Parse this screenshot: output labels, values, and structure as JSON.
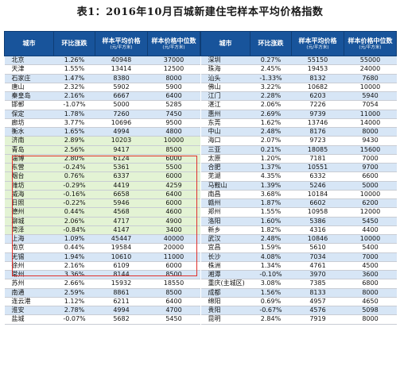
{
  "title": "表1：2016年10月百城新建住宅样本平均价格指数",
  "headers": {
    "city": "城市",
    "mom": "环比涨跌",
    "avg": "样本平均价格",
    "avg_unit": "(元/平方米)",
    "median": "样本价格中位数",
    "median_unit": "(元/平方米)"
  },
  "colors": {
    "header_bg": "#18549b",
    "row_blue": "#d7e6f6",
    "row_white": "#ffffff",
    "row_green": "#e3f3d4",
    "highlight_border": "#e0302c"
  },
  "left_table": [
    {
      "city": "北京",
      "mom": "1.26%",
      "avg": "40948",
      "median": "37000",
      "tone": "blue"
    },
    {
      "city": "天津",
      "mom": "1.55%",
      "avg": "13414",
      "median": "12500",
      "tone": "white"
    },
    {
      "city": "石家庄",
      "mom": "1.47%",
      "avg": "8380",
      "median": "8000",
      "tone": "blue"
    },
    {
      "city": "唐山",
      "mom": "2.32%",
      "avg": "5902",
      "median": "5900",
      "tone": "white"
    },
    {
      "city": "秦皇岛",
      "mom": "2.16%",
      "avg": "6667",
      "median": "6400",
      "tone": "blue"
    },
    {
      "city": "邯郸",
      "mom": "-1.07%",
      "avg": "5000",
      "median": "5285",
      "tone": "white"
    },
    {
      "city": "保定",
      "mom": "1.78%",
      "avg": "7260",
      "median": "7450",
      "tone": "blue"
    },
    {
      "city": "廊坊",
      "mom": "3.77%",
      "avg": "10696",
      "median": "9500",
      "tone": "white"
    },
    {
      "city": "衡水",
      "mom": "1.65%",
      "avg": "4994",
      "median": "4800",
      "tone": "blue"
    },
    {
      "city": "济南",
      "mom": "2.89%",
      "avg": "10203",
      "median": "10000",
      "tone": "green"
    },
    {
      "city": "青岛",
      "mom": "2.56%",
      "avg": "9417",
      "median": "8500",
      "tone": "green"
    },
    {
      "city": "淄博",
      "mom": "2.80%",
      "avg": "6124",
      "median": "6000",
      "tone": "green"
    },
    {
      "city": "东营",
      "mom": "-0.24%",
      "avg": "5361",
      "median": "5500",
      "tone": "green"
    },
    {
      "city": "烟台",
      "mom": "0.76%",
      "avg": "6337",
      "median": "6000",
      "tone": "green"
    },
    {
      "city": "潍坊",
      "mom": "-0.29%",
      "avg": "4419",
      "median": "4259",
      "tone": "green"
    },
    {
      "city": "威海",
      "mom": "-0.16%",
      "avg": "6658",
      "median": "6400",
      "tone": "green"
    },
    {
      "city": "日照",
      "mom": "-0.22%",
      "avg": "5946",
      "median": "6000",
      "tone": "green"
    },
    {
      "city": "德州",
      "mom": "0.44%",
      "avg": "4568",
      "median": "4600",
      "tone": "green"
    },
    {
      "city": "聊城",
      "mom": "2.06%",
      "avg": "4717",
      "median": "4900",
      "tone": "green"
    },
    {
      "city": "菏泽",
      "mom": "-0.84%",
      "avg": "4147",
      "median": "3400",
      "tone": "green"
    },
    {
      "city": "上海",
      "mom": "1.09%",
      "avg": "45447",
      "median": "40000",
      "tone": "blue"
    },
    {
      "city": "南京",
      "mom": "0.44%",
      "avg": "19584",
      "median": "20000",
      "tone": "white"
    },
    {
      "city": "无锡",
      "mom": "1.94%",
      "avg": "10610",
      "median": "11000",
      "tone": "blue"
    },
    {
      "city": "徐州",
      "mom": "2.16%",
      "avg": "6109",
      "median": "6000",
      "tone": "white"
    },
    {
      "city": "常州",
      "mom": "3.36%",
      "avg": "8144",
      "median": "8500",
      "tone": "blue"
    },
    {
      "city": "苏州",
      "mom": "2.66%",
      "avg": "15932",
      "median": "18550",
      "tone": "white"
    },
    {
      "city": "南通",
      "mom": "2.59%",
      "avg": "8861",
      "median": "8500",
      "tone": "blue"
    },
    {
      "city": "连云港",
      "mom": "1.12%",
      "avg": "6211",
      "median": "6400",
      "tone": "white"
    },
    {
      "city": "淮安",
      "mom": "2.78%",
      "avg": "4994",
      "median": "4700",
      "tone": "blue"
    },
    {
      "city": "盐城",
      "mom": "-0.07%",
      "avg": "5682",
      "median": "5450",
      "tone": "white"
    }
  ],
  "right_table": [
    {
      "city": "深圳",
      "mom": "0.27%",
      "avg": "55150",
      "median": "55000",
      "tone": "blue"
    },
    {
      "city": "珠海",
      "mom": "2.45%",
      "avg": "19453",
      "median": "24000",
      "tone": "white"
    },
    {
      "city": "汕头",
      "mom": "-1.33%",
      "avg": "8132",
      "median": "7680",
      "tone": "blue"
    },
    {
      "city": "佛山",
      "mom": "3.22%",
      "avg": "10682",
      "median": "10000",
      "tone": "white"
    },
    {
      "city": "江门",
      "mom": "2.28%",
      "avg": "6203",
      "median": "5940",
      "tone": "blue"
    },
    {
      "city": "湛江",
      "mom": "2.06%",
      "avg": "7226",
      "median": "7054",
      "tone": "white"
    },
    {
      "city": "惠州",
      "mom": "2.69%",
      "avg": "9739",
      "median": "11000",
      "tone": "blue"
    },
    {
      "city": "东莞",
      "mom": "1.62%",
      "avg": "13746",
      "median": "14000",
      "tone": "white"
    },
    {
      "city": "中山",
      "mom": "2.48%",
      "avg": "8176",
      "median": "8000",
      "tone": "blue"
    },
    {
      "city": "海口",
      "mom": "2.07%",
      "avg": "9723",
      "median": "9430",
      "tone": "white"
    },
    {
      "city": "三亚",
      "mom": "0.21%",
      "avg": "18085",
      "median": "15600",
      "tone": "blue"
    },
    {
      "city": "太原",
      "mom": "1.20%",
      "avg": "7181",
      "median": "7000",
      "tone": "white"
    },
    {
      "city": "合肥",
      "mom": "1.37%",
      "avg": "10551",
      "median": "9700",
      "tone": "blue"
    },
    {
      "city": "芜湖",
      "mom": "4.35%",
      "avg": "6332",
      "median": "6600",
      "tone": "white"
    },
    {
      "city": "马鞍山",
      "mom": "1.39%",
      "avg": "5246",
      "median": "5000",
      "tone": "blue"
    },
    {
      "city": "南昌",
      "mom": "3.68%",
      "avg": "10184",
      "median": "10000",
      "tone": "white"
    },
    {
      "city": "赣州",
      "mom": "1.87%",
      "avg": "6602",
      "median": "6200",
      "tone": "blue"
    },
    {
      "city": "郑州",
      "mom": "1.55%",
      "avg": "10958",
      "median": "12000",
      "tone": "white"
    },
    {
      "city": "洛阳",
      "mom": "1.60%",
      "avg": "5386",
      "median": "5450",
      "tone": "blue"
    },
    {
      "city": "新乡",
      "mom": "1.82%",
      "avg": "4316",
      "median": "4400",
      "tone": "white"
    },
    {
      "city": "武汉",
      "mom": "2.48%",
      "avg": "10846",
      "median": "10000",
      "tone": "blue"
    },
    {
      "city": "宜昌",
      "mom": "1.59%",
      "avg": "5610",
      "median": "5400",
      "tone": "white"
    },
    {
      "city": "长沙",
      "mom": "4.08%",
      "avg": "7034",
      "median": "7000",
      "tone": "blue"
    },
    {
      "city": "株洲",
      "mom": "1.34%",
      "avg": "4761",
      "median": "4500",
      "tone": "white"
    },
    {
      "city": "湘潭",
      "mom": "-0.10%",
      "avg": "3970",
      "median": "3600",
      "tone": "blue"
    },
    {
      "city": "重庆(主城区)",
      "mom": "3.08%",
      "avg": "7385",
      "median": "6800",
      "tone": "white"
    },
    {
      "city": "成都",
      "mom": "1.56%",
      "avg": "8133",
      "median": "8000",
      "tone": "blue"
    },
    {
      "city": "绵阳",
      "mom": "0.69%",
      "avg": "4957",
      "median": "4650",
      "tone": "white"
    },
    {
      "city": "贵阳",
      "mom": "-0.67%",
      "avg": "4576",
      "median": "5098",
      "tone": "blue"
    },
    {
      "city": "昆明",
      "mom": "2.84%",
      "avg": "7919",
      "median": "8000",
      "tone": "white"
    }
  ]
}
